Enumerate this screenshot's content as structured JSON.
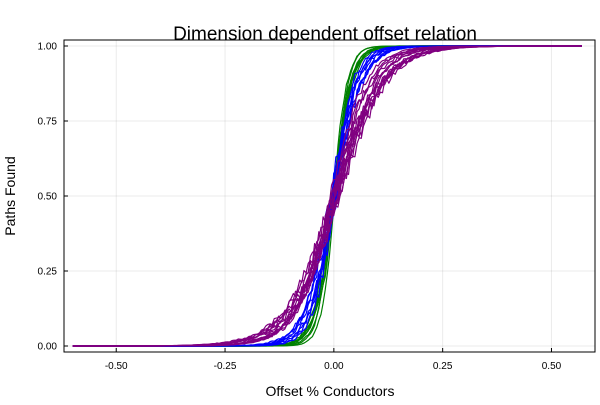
{
  "chart_data": {
    "type": "line",
    "title": "Dimension dependent offset relation",
    "xlabel": "Offset % Conductors",
    "ylabel": "Paths Found",
    "xlim": [
      -0.62,
      0.6
    ],
    "ylim": [
      -0.02,
      1.02
    ],
    "xticks": [
      -0.5,
      -0.25,
      0.0,
      0.25,
      0.5
    ],
    "xtick_labels": [
      "-0.50",
      "-0.25",
      "0.00",
      "0.25",
      "0.50"
    ],
    "yticks": [
      0.0,
      0.25,
      0.5,
      0.75,
      1.0
    ],
    "ytick_labels": [
      "0.00",
      "0.25",
      "0.50",
      "0.75",
      "1.00"
    ],
    "grid": true,
    "legend": "none",
    "x_range": [
      -0.6,
      0.57
    ],
    "series_groups": [
      {
        "color": "#008000",
        "count": 8,
        "center": 0.0,
        "scale": 0.018,
        "noise": 0.02
      },
      {
        "color": "#0000ff",
        "count": 8,
        "center": 0.0,
        "scale": 0.028,
        "noise": 0.04
      },
      {
        "color": "#800080",
        "count": 14,
        "center": 0.0,
        "scale": 0.05,
        "noise": 0.03
      }
    ]
  }
}
